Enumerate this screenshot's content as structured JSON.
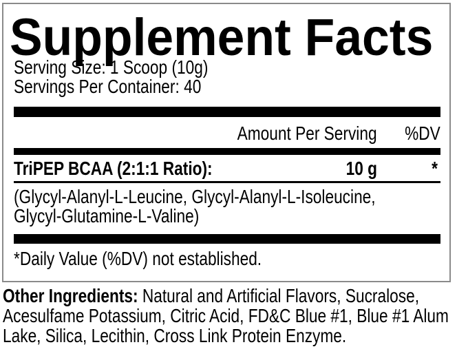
{
  "label": {
    "title": "Supplement Facts",
    "serving_size": "Serving Size: 1 Scoop (10g)",
    "servings_per_container": "Servings Per Container: 40",
    "header": {
      "amount": "Amount Per Serving",
      "dv": "%DV"
    },
    "rows": [
      {
        "name": "TriPEP BCAA (2:1:1 Ratio):",
        "amount": "10 g",
        "dv": "*"
      }
    ],
    "ingredient_detail_lines": [
      "(Glycyl-Alanyl-L-Leucine, Glycyl-Alanyl-L-Isoleucine,",
      "Glycyl-Glutamine-L-Valine)"
    ],
    "footnote": "*Daily Value (%DV) not established.",
    "other_ingredients": {
      "label": "Other Ingredients:",
      "line1_rest": "Natural and Artificial Flavors, Sucralose,",
      "line2": "Acesulfame Potassium, Citric Acid, FD&C Blue #1, Blue #1 Alum",
      "line3": "Lake, Silica, Lecithin, Cross Link Protein Enzyme."
    },
    "colors": {
      "text": "#000000",
      "border": "#8a8a8a",
      "divider": "#000000",
      "background": "#ffffff"
    }
  }
}
